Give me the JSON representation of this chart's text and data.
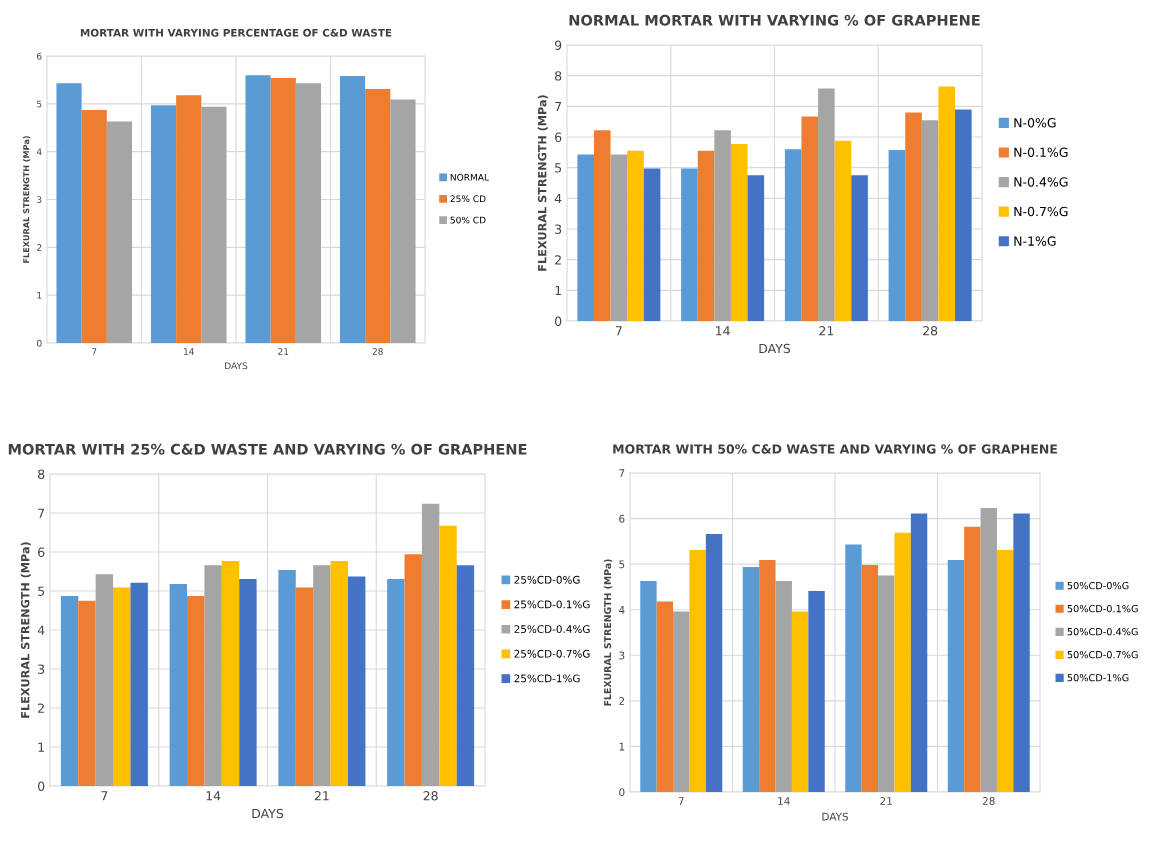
{
  "chart_data": [
    {
      "type": "bar",
      "title": "MORTAR WITH VARYING PERCENTAGE OF C&D WASTE",
      "xlabel": "DAYS",
      "ylabel": "FLEXURAL STRENGTH (MPa)",
      "categories": [
        "7",
        "14",
        "21",
        "28"
      ],
      "ylim": [
        0,
        6
      ],
      "yticks": [
        0,
        1,
        2,
        3,
        4,
        5,
        6
      ],
      "grid": true,
      "legend": "right",
      "series": [
        {
          "name": "NORMAL",
          "color": "#5b9bd5",
          "values": [
            5.43,
            4.97,
            5.6,
            5.58
          ]
        },
        {
          "name": "25% CD",
          "color": "#ed7d31",
          "values": [
            4.87,
            5.18,
            5.54,
            5.31
          ]
        },
        {
          "name": "50% CD",
          "color": "#a5a5a5",
          "values": [
            4.63,
            4.94,
            5.43,
            5.09
          ]
        }
      ]
    },
    {
      "type": "bar",
      "title": "NORMAL MORTAR WITH VARYING % OF GRAPHENE",
      "xlabel": "DAYS",
      "ylabel": "FLEXURAL STRENGTH (MPa)",
      "categories": [
        "7",
        "14",
        "21",
        "28"
      ],
      "ylim": [
        0,
        9
      ],
      "yticks": [
        0,
        1,
        2,
        3,
        4,
        5,
        6,
        7,
        8,
        9
      ],
      "grid": true,
      "legend": "right",
      "series": [
        {
          "name": "N-0%G",
          "color": "#5b9bd5",
          "values": [
            5.43,
            4.97,
            5.6,
            5.58
          ]
        },
        {
          "name": "N-0.1%G",
          "color": "#ed7d31",
          "values": [
            6.22,
            5.55,
            6.67,
            6.8
          ]
        },
        {
          "name": "N-0.4%G",
          "color": "#a5a5a5",
          "values": [
            5.43,
            6.22,
            7.58,
            6.55
          ]
        },
        {
          "name": "N-0.7%G",
          "color": "#ffc000",
          "values": [
            5.55,
            5.77,
            5.88,
            7.65
          ]
        },
        {
          "name": "N-1%G",
          "color": "#4472c4",
          "values": [
            4.97,
            4.75,
            4.75,
            6.9
          ]
        }
      ]
    },
    {
      "type": "bar",
      "title": "MORTAR WITH 25% C&D WASTE AND VARYING % OF GRAPHENE",
      "xlabel": "DAYS",
      "ylabel": "FLEXURAL STRENGTH (MPa)",
      "categories": [
        "7",
        "14",
        "21",
        "28"
      ],
      "ylim": [
        0,
        8
      ],
      "yticks": [
        0,
        1,
        2,
        3,
        4,
        5,
        6,
        7,
        8
      ],
      "grid": true,
      "legend": "right",
      "series": [
        {
          "name": "25%CD-0%G",
          "color": "#5b9bd5",
          "values": [
            4.87,
            5.18,
            5.54,
            5.31
          ]
        },
        {
          "name": "25%CD-0.1%G",
          "color": "#ed7d31",
          "values": [
            4.75,
            4.87,
            5.09,
            5.94
          ]
        },
        {
          "name": "25%CD-0.4%G",
          "color": "#a5a5a5",
          "values": [
            5.43,
            5.66,
            5.66,
            7.24
          ]
        },
        {
          "name": "25%CD-0.7%G",
          "color": "#ffc000",
          "values": [
            5.09,
            5.77,
            5.77,
            6.67
          ]
        },
        {
          "name": "25%CD-1%G",
          "color": "#4472c4",
          "values": [
            5.21,
            5.31,
            5.37,
            5.66
          ]
        }
      ]
    },
    {
      "type": "bar",
      "title": "MORTAR WITH 50% C&D WASTE AND VARYING % OF GRAPHENE",
      "xlabel": "DAYS",
      "ylabel": "FLEXURAL STRENGTH (MPa)",
      "categories": [
        "7",
        "14",
        "21",
        "28"
      ],
      "ylim": [
        0,
        7
      ],
      "yticks": [
        0,
        1,
        2,
        3,
        4,
        5,
        6,
        7
      ],
      "grid": true,
      "legend": "right",
      "series": [
        {
          "name": "50%CD-0%G",
          "color": "#5b9bd5",
          "values": [
            4.63,
            4.94,
            5.43,
            5.09
          ]
        },
        {
          "name": "50%CD-0.1%G",
          "color": "#ed7d31",
          "values": [
            4.18,
            5.09,
            4.98,
            5.82
          ]
        },
        {
          "name": "50%CD-0.4%G",
          "color": "#a5a5a5",
          "values": [
            3.96,
            4.63,
            4.75,
            6.23
          ]
        },
        {
          "name": "50%CD-0.7%G",
          "color": "#ffc000",
          "values": [
            5.31,
            3.96,
            5.69,
            5.31
          ]
        },
        {
          "name": "50%CD-1%G",
          "color": "#4472c4",
          "values": [
            5.66,
            4.41,
            6.11,
            6.11
          ]
        }
      ]
    }
  ]
}
